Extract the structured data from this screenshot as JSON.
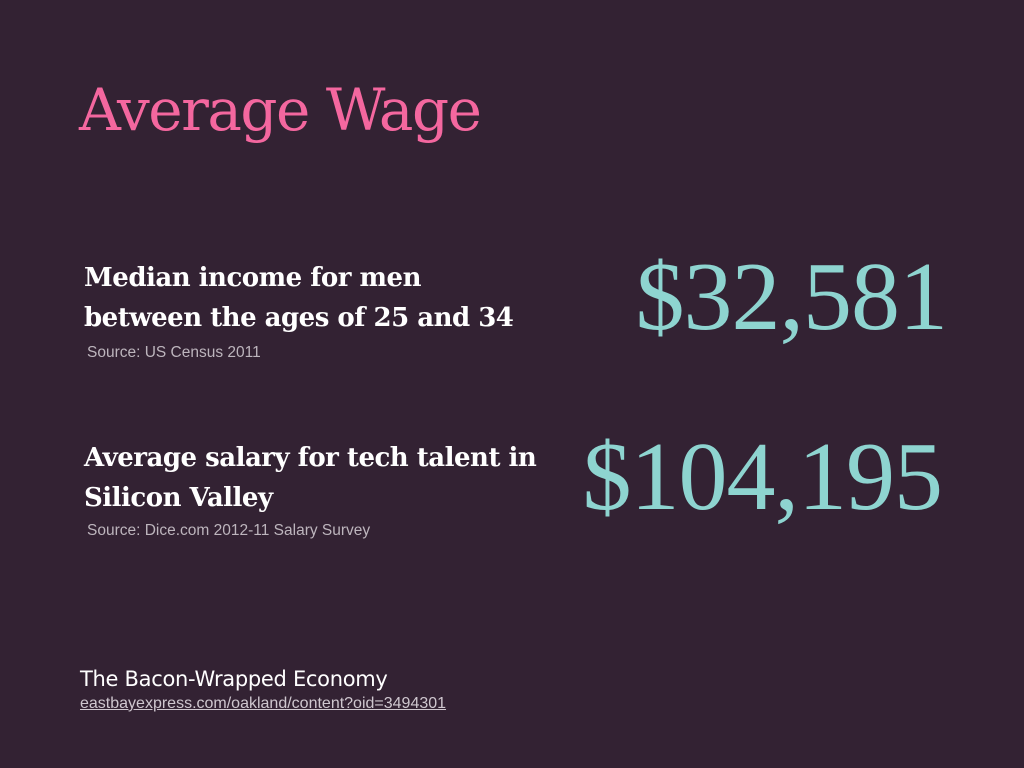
{
  "colors": {
    "background": "#332233",
    "title": "#f4679f",
    "value": "#8ed4d0",
    "label": "#ffffff",
    "source": "#bdb5bd"
  },
  "slide": {
    "title": "Average Wage",
    "stats": [
      {
        "label_line1": "Median income for men",
        "label_line2": "between the ages of 25 and 34",
        "source": "Source: US Census 2011",
        "value": "$32,581"
      },
      {
        "label_line1": "Average salary for tech talent in",
        "label_line2": "Silicon Valley",
        "source": "Source: Dice.com 2012-11 Salary Survey",
        "value": "$104,195"
      }
    ],
    "footer": {
      "title": "The Bacon-Wrapped Economy",
      "link": "eastbayexpress.com/oakland/content?oid=3494301"
    }
  }
}
